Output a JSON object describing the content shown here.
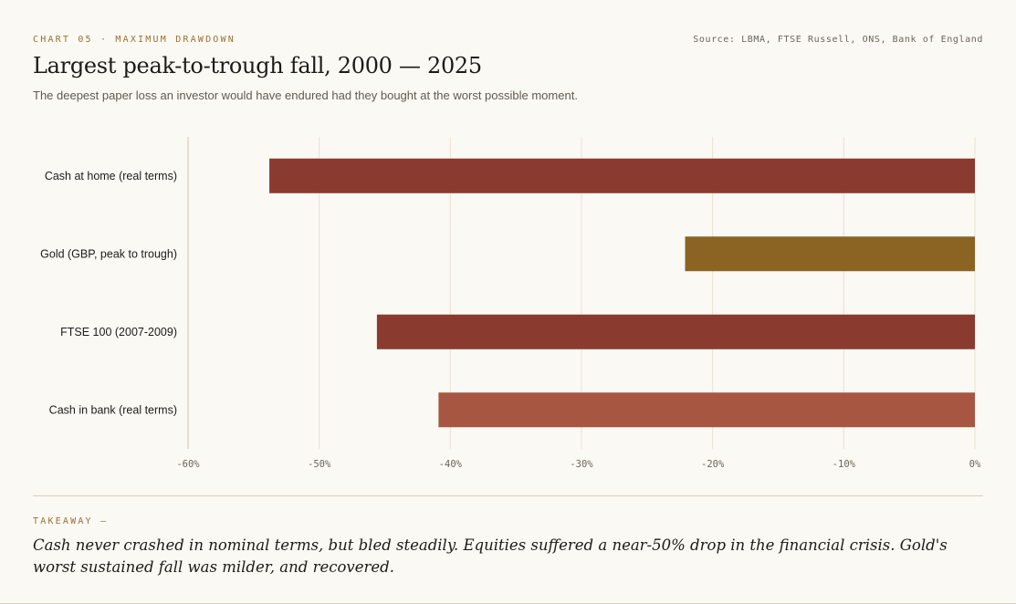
{
  "header": {
    "kicker": "CHART 05 · MAXIMUM DRAWDOWN",
    "source": "Source: LBMA, FTSE Russell, ONS, Bank of England",
    "title": "Largest peak-to-trough fall, 2000 — 2025",
    "subtitle": "The deepest paper loss an investor would have endured had they bought at the worst possible moment."
  },
  "chart_data": {
    "type": "bar",
    "orientation": "horizontal",
    "categories": [
      "Cash at home (real terms)",
      "Gold (GBP, peak to trough)",
      "FTSE 100 (2007-2009)",
      "Cash in bank (real terms)"
    ],
    "values": [
      -53.8,
      -22.1,
      -45.6,
      -40.9
    ],
    "colors": [
      "#8b3a2f",
      "#8b6423",
      "#8b3a2f",
      "#a65641"
    ],
    "xlim": [
      -60,
      0
    ],
    "xticks": [
      -60,
      -50,
      -40,
      -30,
      -20,
      -10,
      0
    ],
    "xtick_labels": [
      "-60%",
      "-50%",
      "-40%",
      "-30%",
      "-20%",
      "-10%",
      "0%"
    ],
    "grid": "vertical"
  },
  "takeaway": {
    "label": "TAKEAWAY —",
    "text": "Cash never crashed in nominal terms, but bled steadily. Equities suffered a near-50% drop in the financial crisis. Gold's worst sustained fall was milder, and recovered."
  }
}
